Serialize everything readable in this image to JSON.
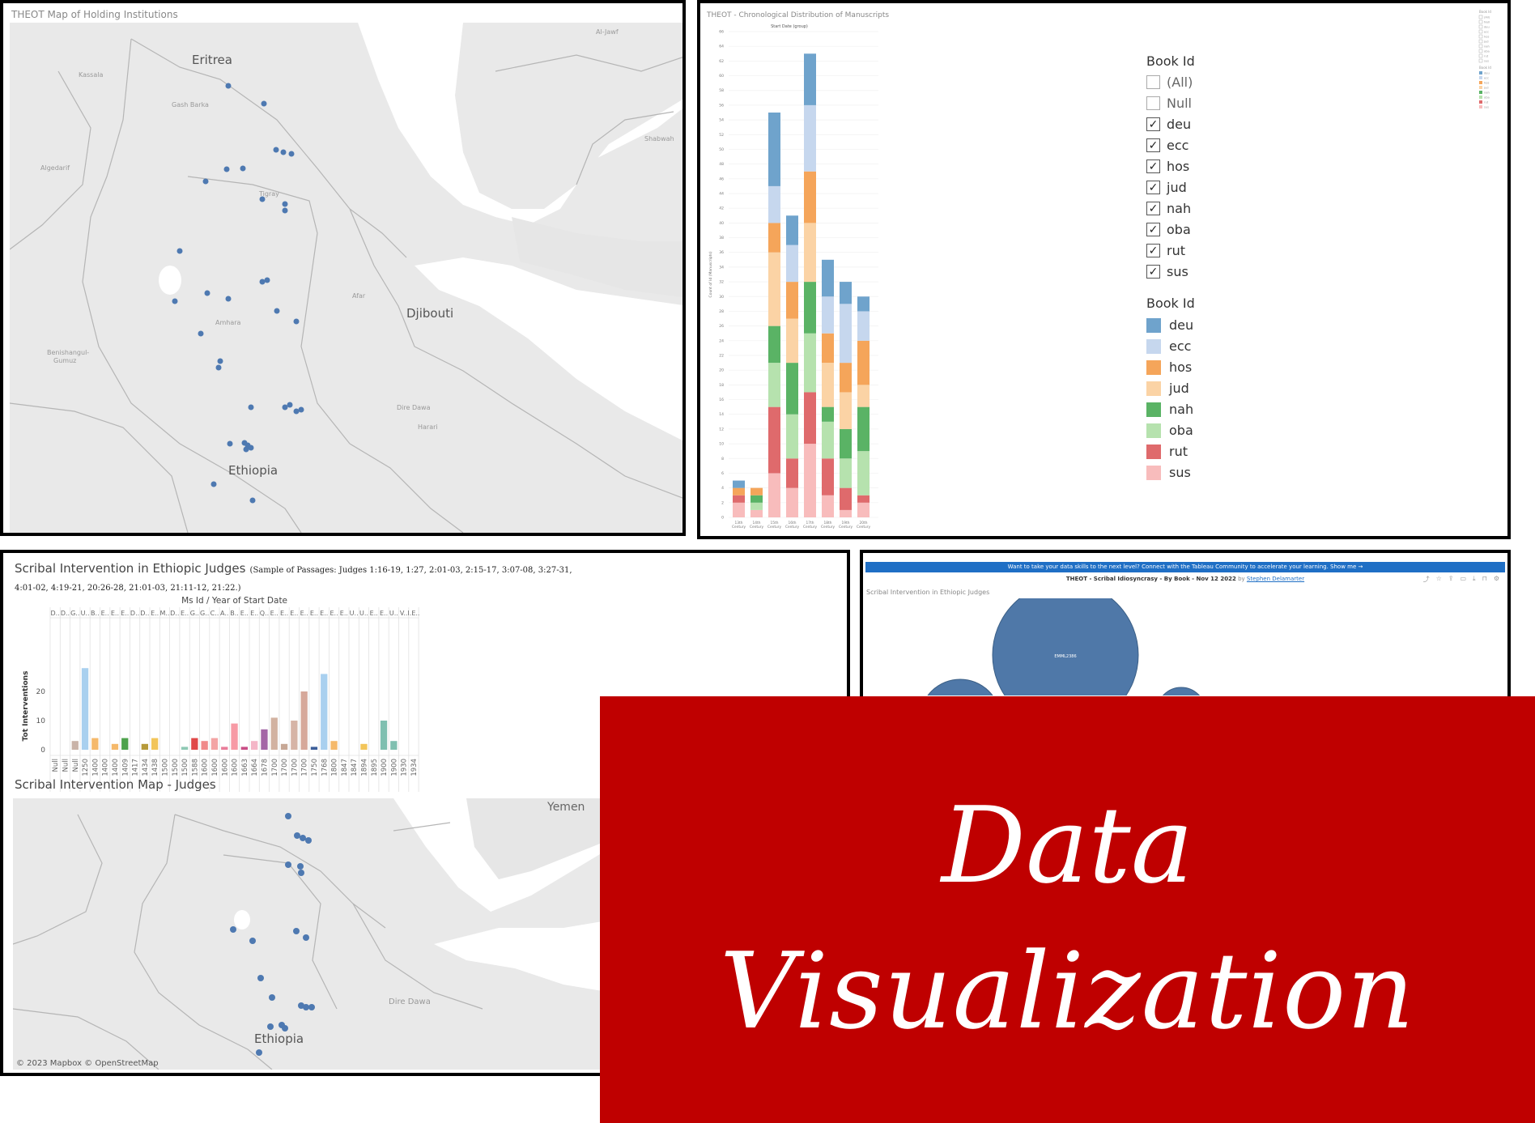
{
  "map1": {
    "title": "THEOT Map of Holding Institutions",
    "labels": [
      "Eritrea",
      "Kassala",
      "Gash Barka",
      "Algedarif",
      "Tigray",
      "Amhara",
      "Afar",
      "Djibouti",
      "Benishangul-Gumuz",
      "Dire Dawa",
      "Harari",
      "Ethiopia",
      "Al-Jawf",
      "Shabwah"
    ]
  },
  "chrono": {
    "title": "THEOT - Chronological Distribution of Manuscripts",
    "subtitle": "Start Date (group)",
    "filter_title": "Book Id",
    "filter_items": [
      {
        "label": "(All)",
        "checked": false
      },
      {
        "label": "Null",
        "checked": false
      },
      {
        "label": "deu",
        "checked": true
      },
      {
        "label": "ecc",
        "checked": true
      },
      {
        "label": "hos",
        "checked": true
      },
      {
        "label": "jud",
        "checked": true
      },
      {
        "label": "nah",
        "checked": true
      },
      {
        "label": "oba",
        "checked": true
      },
      {
        "label": "rut",
        "checked": true
      },
      {
        "label": "sus",
        "checked": true
      }
    ],
    "legend_title": "Book Id",
    "legend_items": [
      {
        "label": "deu",
        "color": "#6fa3cc"
      },
      {
        "label": "ecc",
        "color": "#c6d7ee"
      },
      {
        "label": "hos",
        "color": "#f5a55a"
      },
      {
        "label": "jud",
        "color": "#fbd3a5"
      },
      {
        "label": "nah",
        "color": "#5ab365"
      },
      {
        "label": "oba",
        "color": "#b6e2ae"
      },
      {
        "label": "rut",
        "color": "#df6a6c"
      },
      {
        "label": "sus",
        "color": "#f8bcbc"
      }
    ],
    "check_mark": "✓"
  },
  "chart_data": [
    {
      "type": "bar",
      "stacked": true,
      "title": "THEOT - Chronological Distribution of Manuscripts",
      "xlabel": "Start Date (group)",
      "ylabel": "Count of Id (Manuscripts)",
      "categories": [
        "13th Century",
        "14th Century",
        "15th Century",
        "16th Century",
        "17th Century",
        "18th Century",
        "19th Century",
        "20th Century"
      ],
      "ylim": [
        0,
        66
      ],
      "y_ticks": [
        0,
        2,
        4,
        6,
        8,
        10,
        12,
        14,
        16,
        18,
        20,
        22,
        24,
        26,
        28,
        30,
        32,
        34,
        36,
        38,
        40,
        42,
        44,
        46,
        48,
        50,
        52,
        54,
        56,
        58,
        60,
        62,
        64,
        66
      ],
      "series": [
        {
          "name": "sus",
          "color": "#f8bcbc",
          "values": [
            2,
            1,
            6,
            4,
            10,
            3,
            1,
            2
          ]
        },
        {
          "name": "rut",
          "color": "#df6a6c",
          "values": [
            1,
            0,
            9,
            4,
            7,
            5,
            3,
            1
          ]
        },
        {
          "name": "oba",
          "color": "#b6e2ae",
          "values": [
            0,
            1,
            6,
            6,
            8,
            5,
            4,
            6
          ]
        },
        {
          "name": "nah",
          "color": "#5ab365",
          "values": [
            0,
            1,
            5,
            7,
            7,
            2,
            4,
            6
          ]
        },
        {
          "name": "jud",
          "color": "#fbd3a5",
          "values": [
            0,
            0,
            10,
            6,
            8,
            6,
            5,
            3
          ]
        },
        {
          "name": "hos",
          "color": "#f5a55a",
          "values": [
            1,
            1,
            4,
            5,
            7,
            4,
            4,
            6
          ]
        },
        {
          "name": "ecc",
          "color": "#c6d7ee",
          "values": [
            0,
            0,
            5,
            5,
            9,
            5,
            8,
            4
          ]
        },
        {
          "name": "deu",
          "color": "#6fa3cc",
          "values": [
            1,
            0,
            10,
            4,
            7,
            5,
            3,
            2
          ]
        }
      ]
    },
    {
      "type": "bar",
      "title": "Scribal Intervention in Ethiopic Judges",
      "title_note": "(Sample of Passages: Judges 1:16-19, 1:27, 2:01-03, 2:15-17, 3:07-08, 3:27-31, 4:01-02, 4:19-21, 20:26-28, 21:01-03, 21:11-12, 21:22.)",
      "xlabel": "Ms Id / Year of Start Date",
      "ylabel": "Tot Interventions",
      "ylim": [
        0,
        30
      ],
      "y_ticks": [
        0,
        10,
        20
      ],
      "top_labels": [
        "D..",
        "D..",
        "G..",
        "U..",
        "B..",
        "E..",
        "E..",
        "E..",
        "D..",
        "D..",
        "E..",
        "M..",
        "D..",
        "E..",
        "G..",
        "G..",
        "C..",
        "A..",
        "B..",
        "E..",
        "E..",
        "Q..",
        "E..",
        "E..",
        "E..",
        "E..",
        "E..",
        "E..",
        "E..",
        "E..",
        "U..",
        "U..",
        "E..",
        "E..",
        "U..",
        "V..",
        "I.E.."
      ],
      "years": [
        "Null",
        "Null",
        "Null",
        "1250",
        "1400",
        "1400",
        "1400",
        "1409",
        "1417",
        "1434",
        "1438",
        "1500",
        "1500",
        "1500",
        "1588",
        "1600",
        "1600",
        "1600",
        "1600",
        "1663",
        "1664",
        "1678",
        "1700",
        "1700",
        "1700",
        "1700",
        "1750",
        "1768",
        "1800",
        "1847",
        "1847",
        "1894",
        "1895",
        "1900",
        "1900",
        "1930",
        "1934"
      ],
      "values": [
        0,
        0,
        3,
        28,
        4,
        0,
        2,
        4,
        0,
        2,
        4,
        0,
        0,
        1,
        4,
        3,
        4,
        1,
        9,
        1,
        3,
        7,
        11,
        2,
        10,
        20,
        1,
        26,
        3,
        0,
        0,
        2,
        0,
        10,
        3,
        0,
        0
      ],
      "colors": [
        "#c9b3a8",
        "#c9b3a8",
        "#c9b3a8",
        "#a9d0ef",
        "#f5b96b",
        "#f5b96b",
        "#f5b96b",
        "#4ea24d",
        "#b4a35a",
        "#b69a3a",
        "#f2c55a",
        "#5c9e9e",
        "#5c9e9e",
        "#8ec9b4",
        "#e04848",
        "#f08a8a",
        "#f3a4a4",
        "#e97d9a",
        "#f79aa5",
        "#c94d86",
        "#f4b6c7",
        "#a466a6",
        "#d2b2a1",
        "#c7a896",
        "#d6b4a6",
        "#d6a89a",
        "#3c5f9a",
        "#a9d0ef",
        "#f5b96b",
        "#f5b96b",
        "#f5b96b",
        "#f2c55a",
        "#f2c55a",
        "#7fbfb0",
        "#7fbfb0",
        "#7fbfb0",
        "#7fbfb0"
      ]
    }
  ],
  "judges": {
    "title": "Scribal Intervention in Ethiopic Judges",
    "note": "(Sample of Passages: Judges 1:16-19, 1:27, 2:01-03, 2:15-17, 3:07-08, 3:27-31, 4:01-02, 4:19-21, 20:26-28, 21:01-03, 21:11-12, 21:22.)",
    "xheader": "Ms Id / Year of Start Date",
    "ylabel": "Tot Interventions"
  },
  "map2": {
    "title": "Scribal Intervention Map - Judges",
    "labels": [
      "Yemen",
      "Dire Dawa",
      "Ethiopia"
    ],
    "attribution": "© 2023 Mapbox © OpenStreetMap"
  },
  "tableau": {
    "banner": "Want to take your data skills to the next level? Connect with the Tableau Community to accelerate your learning. Show me →",
    "header": "THEOT - Scribal Idiosyncrasy - By Book - Nov 12 2022",
    "by": "by",
    "author": "Stephen Delamarter",
    "subtitle": "Scribal Intervention in Ethiopic Judges",
    "bubble_label": "EMML2386"
  },
  "overlay": {
    "line1": "Data",
    "line2": "Visualization",
    "bg_color": "#bf0000"
  }
}
